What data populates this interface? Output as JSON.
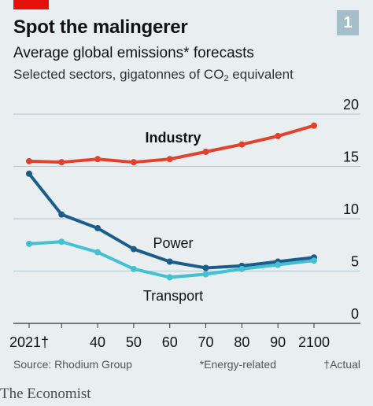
{
  "header": {
    "title": "Spot the malingerer",
    "chart_number": "1",
    "subtitle": "Average global emissions* forecasts",
    "subtitle2_main": "Selected sectors, gigatonnes of CO",
    "subtitle2_sub": "2",
    "subtitle2_tail": " equivalent"
  },
  "footer": {
    "source": "Source: Rhodium Group",
    "note_energy": "*Energy-related",
    "note_actual": "†Actual",
    "brand": "The Economist"
  },
  "colors": {
    "industry": "#e3412b",
    "power": "#1a5c8c",
    "transport": "#45c0d2",
    "accent": "#e3120b",
    "gridline": "#b7c6cc"
  },
  "chart_data": {
    "type": "line",
    "x": [
      2021,
      2030,
      2040,
      2050,
      2060,
      2070,
      2080,
      2090,
      2100
    ],
    "x_tick_labels": [
      "2021†",
      "",
      "40",
      "50",
      "60",
      "70",
      "80",
      "90",
      "2100"
    ],
    "xlim": [
      2021,
      2100
    ],
    "ylim": [
      0,
      20
    ],
    "y_ticks": [
      0,
      5,
      10,
      15,
      20
    ],
    "y_axis_position": "right",
    "grid": true,
    "series": [
      {
        "name": "Industry",
        "values": [
          15.5,
          15.4,
          15.7,
          15.4,
          15.7,
          16.4,
          17.1,
          17.9,
          18.9
        ]
      },
      {
        "name": "Power",
        "values": [
          14.3,
          10.4,
          9.1,
          7.1,
          5.9,
          5.3,
          5.5,
          5.9,
          6.3
        ]
      },
      {
        "name": "Transport",
        "values": [
          7.6,
          7.8,
          6.8,
          5.2,
          4.4,
          4.7,
          5.2,
          5.6,
          6.0
        ]
      }
    ]
  }
}
